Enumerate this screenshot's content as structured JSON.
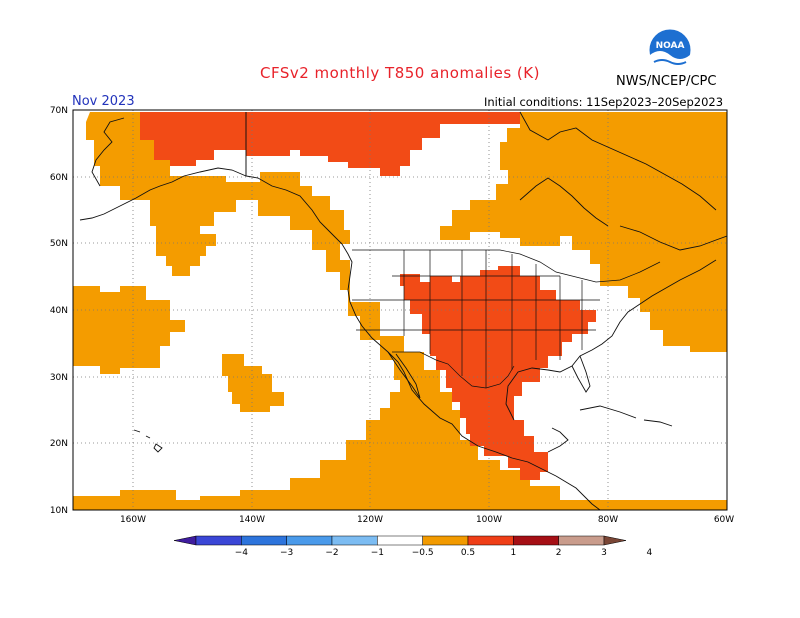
{
  "header": {
    "title": "CFSv2 monthly T850 anomalies (K)",
    "month": "Nov 2023",
    "initial_conditions": "Initial conditions: 11Sep2023–20Sep2023",
    "agency": "NWS/NCEP/CPC",
    "logo_text": "NOAA"
  },
  "axes": {
    "lat_labels": [
      "70N",
      "60N",
      "50N",
      "40N",
      "30N",
      "20N",
      "10N"
    ],
    "lon_labels": [
      "160W",
      "140W",
      "120W",
      "100W",
      "80W",
      "60W"
    ]
  },
  "colorbar": {
    "labels": [
      "−4",
      "−3",
      "−2",
      "−1",
      "−0.5",
      "0.5",
      "1",
      "2",
      "3",
      "4"
    ],
    "colors": [
      "#3f1c9e",
      "#3a46d6",
      "#2d74dc",
      "#4a9aea",
      "#7cbcf2",
      "#ffffff",
      "#f29a00",
      "#ef3e17",
      "#a50f15",
      "#c99c8c",
      "#7a4636"
    ]
  },
  "legend_colors": {
    "orange": "#f49c00",
    "red": "#f24b16"
  }
}
